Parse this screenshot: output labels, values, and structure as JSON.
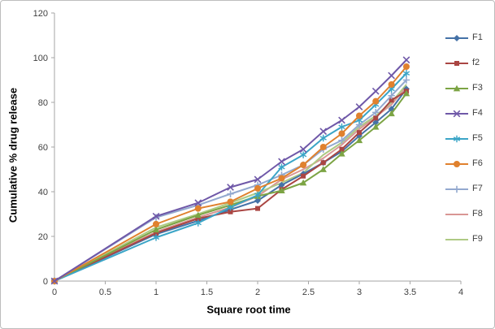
{
  "chart": {
    "y_axis_title": "Cumulative % drug release",
    "x_axis_title": "Square root time"
  },
  "chart_data": {
    "type": "line",
    "title": "",
    "xlabel": "Square root time",
    "ylabel": "Cumulative % drug release",
    "xlim": [
      0,
      4
    ],
    "ylim": [
      0,
      120
    ],
    "grid": false,
    "legend_position": "right",
    "x_tick_labels": [
      "0",
      "0.5",
      "1",
      "1.5",
      "2",
      "2.5",
      "3",
      "3.5",
      "4"
    ],
    "y_tick_labels": [
      "0",
      "20",
      "40",
      "60",
      "80",
      "100",
      "120"
    ],
    "x": [
      0,
      1,
      1.414,
      1.732,
      2,
      2.236,
      2.449,
      2.646,
      2.828,
      3,
      3.162,
      3.317,
      3.464
    ],
    "series": [
      {
        "name": "F1",
        "color": "#4572A7",
        "marker": "diamond",
        "values": [
          0,
          21,
          27,
          32,
          36,
          43,
          48,
          53,
          58,
          65,
          71,
          77,
          86
        ]
      },
      {
        "name": "f2",
        "color": "#AA4643",
        "marker": "square",
        "values": [
          0,
          21.5,
          28,
          31,
          32.5,
          41,
          47,
          53,
          59,
          66.5,
          73,
          81,
          85
        ]
      },
      {
        "name": "F3",
        "color": "#7CA444",
        "marker": "triangle",
        "values": [
          0,
          23,
          29.5,
          34,
          38,
          40.5,
          44,
          50,
          57,
          63,
          69,
          75,
          84
        ]
      },
      {
        "name": "F4",
        "color": "#6F58A8",
        "marker": "x",
        "values": [
          0,
          29,
          35,
          42,
          45.5,
          53.5,
          59,
          67,
          72,
          78,
          85,
          92,
          99
        ]
      },
      {
        "name": "F5",
        "color": "#3BA5C7",
        "marker": "asterisk",
        "values": [
          0,
          19.5,
          26,
          33,
          38.5,
          51,
          56.5,
          64,
          69,
          72,
          79,
          86,
          93
        ]
      },
      {
        "name": "F6",
        "color": "#E0812E",
        "marker": "circle",
        "values": [
          0,
          25.5,
          32.5,
          35.5,
          41.5,
          46,
          52,
          60,
          66,
          74,
          80.5,
          88,
          96
        ]
      },
      {
        "name": "F7",
        "color": "#93A9CF",
        "marker": "plus",
        "values": [
          0,
          28.5,
          34,
          39,
          43,
          47.5,
          52,
          59,
          63,
          70,
          75.5,
          83,
          90
        ]
      },
      {
        "name": "F8",
        "color": "#D99694",
        "marker": "none",
        "values": [
          0,
          22,
          28.5,
          33,
          38,
          45.5,
          50,
          55,
          61,
          68,
          73.5,
          79,
          87
        ]
      },
      {
        "name": "F9",
        "color": "#AECA84",
        "marker": "none",
        "values": [
          0,
          24,
          30,
          35,
          39.5,
          44,
          48.5,
          56.5,
          62,
          69,
          74,
          80,
          88
        ]
      }
    ]
  }
}
